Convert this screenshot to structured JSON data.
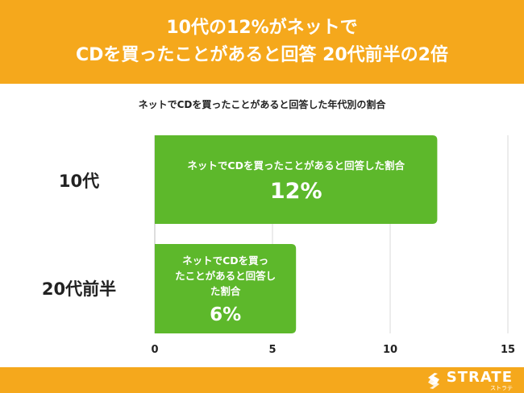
{
  "header": {
    "line1": "10代の12%がネットで",
    "line2": "CDを買ったことがあると回答 20代前半の2倍"
  },
  "colors": {
    "accent": "#F5A81C",
    "bar": "#5DB82B",
    "bar_text": "#ffffff",
    "grid": "#d9d9d9"
  },
  "chart_data": {
    "type": "bar",
    "orientation": "horizontal",
    "title": "ネットでCDを買ったことがあると回答した年代別の割合",
    "categories": [
      "10代",
      "20代前半"
    ],
    "series": [
      {
        "values": [
          12,
          6
        ],
        "bar_label_lines": [
          [
            "ネットでCDを買ったことがあると回答した割合"
          ],
          [
            "ネットでCDを買っ",
            "たことがあると回答し",
            "た割合"
          ]
        ],
        "value_labels": [
          "12%",
          "6%"
        ]
      }
    ],
    "xlim": [
      0,
      15
    ],
    "xticks": [
      0,
      5,
      10,
      15
    ],
    "grid": true
  },
  "footer": {
    "logo_text": "STRATE",
    "logo_subtext": "ストラテ",
    "logo_icon": "strate-logo-icon"
  }
}
